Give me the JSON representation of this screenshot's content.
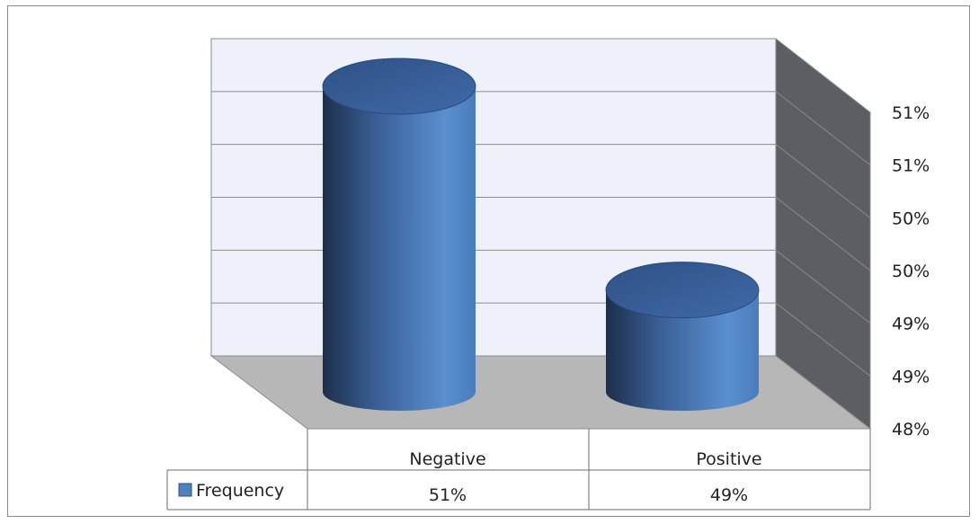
{
  "chart_data": {
    "type": "bar",
    "style": "3d-cylinder",
    "categories": [
      "Negative",
      "Positive"
    ],
    "series": [
      {
        "name": "Frequency",
        "values": [
          51,
          49
        ],
        "value_labels": [
          "51%",
          "49%"
        ],
        "color": "#4f81bd"
      }
    ],
    "ylim": [
      48,
      51
    ],
    "y_tick_labels": [
      "48%",
      "49%",
      "49%",
      "50%",
      "50%",
      "51%",
      "51%"
    ],
    "grid": true,
    "legend": "data-table",
    "colors": {
      "bar": "#4f81bd",
      "back_wall": "#eef1fa",
      "side_wall": "#5b5e62",
      "floor": "#b7b7b7"
    }
  }
}
